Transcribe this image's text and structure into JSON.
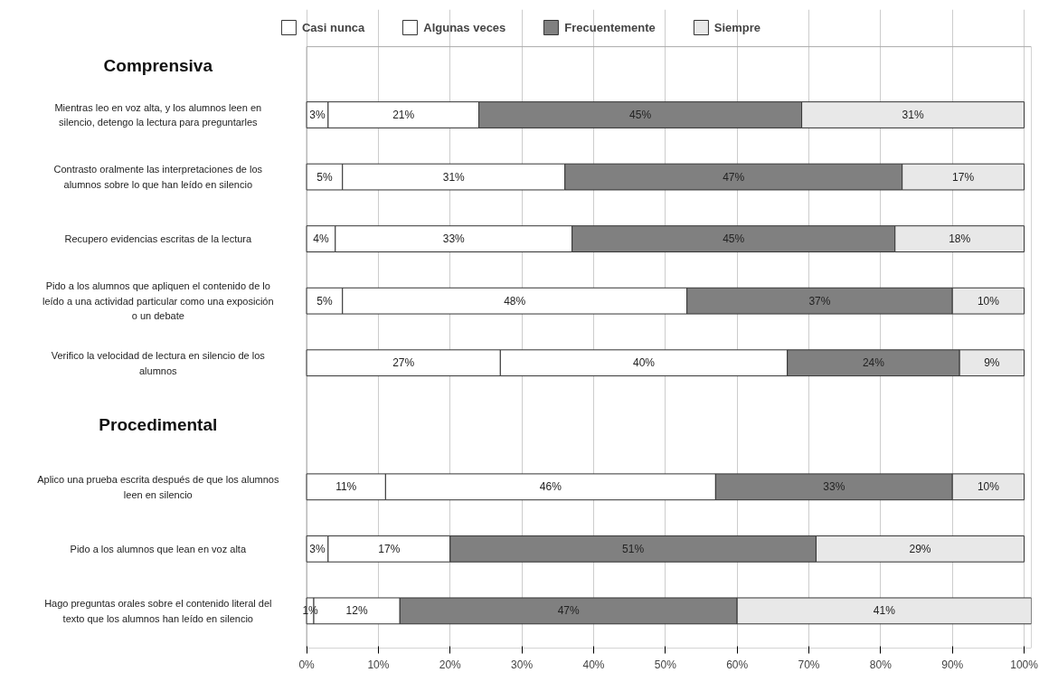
{
  "chart_data": {
    "type": "bar",
    "orientation": "horizontal",
    "stacked": true,
    "categories": [
      "Mientras leo en voz alta, y los alumnos leen en silencio, detengo la lectura para preguntarles",
      "Contrasto oralmente las interpretaciones de los alumnos sobre lo que han leído en silencio",
      "Recupero evidencias escritas de la lectura",
      "Pido a los alumnos que apliquen el contenido de lo leído a una actividad particular como una exposición o un debate",
      "Verifico la velocidad de lectura en silencio de los alumnos",
      null,
      "Aplico una prueba escrita después de que los alumnos leen en silencio",
      "Pido a los alumnos que lean en voz alta",
      "Hago preguntas orales sobre el contenido literal del texto que los alumnos han leído en silencio"
    ],
    "series": [
      {
        "name": "Casi nunca",
        "color": "#ffffff",
        "values": [
          3,
          5,
          4,
          5,
          27,
          null,
          11,
          3,
          1
        ],
        "value_labels": [
          "3%",
          "5%",
          "4%",
          "5%",
          "27%",
          null,
          "11%",
          "3%",
          "1%"
        ]
      },
      {
        "name": "Algunas veces",
        "color": "#ffffff",
        "values": [
          21,
          31,
          33,
          48,
          40,
          null,
          46,
          17,
          12
        ],
        "value_labels": [
          "21%",
          "31%",
          "33%",
          "48%",
          "40%",
          null,
          "46%",
          "17%",
          "12%"
        ]
      },
      {
        "name": "Frecuentemente",
        "color": "#808080",
        "values": [
          45,
          47,
          45,
          37,
          24,
          null,
          33,
          51,
          47
        ],
        "value_labels": [
          "45%",
          "47%",
          "45%",
          "37%",
          "24%",
          null,
          "33%",
          "51%",
          "47%"
        ]
      },
      {
        "name": "Siempre",
        "color": "#e8e8e8",
        "values": [
          31,
          17,
          18,
          10,
          9,
          null,
          10,
          29,
          41
        ],
        "value_labels": [
          "31%",
          "17%",
          "18%",
          "10%",
          "9%",
          null,
          "10%",
          "29%",
          "41%"
        ]
      }
    ],
    "annotations": [
      "Comprensiva",
      "Procedimental"
    ],
    "xlim": [
      0,
      101
    ],
    "xticks": [
      {
        "value": 0,
        "label": "0%"
      },
      {
        "value": 10,
        "label": "10%"
      },
      {
        "value": 20,
        "label": "20%"
      },
      {
        "value": 30,
        "label": "30%"
      },
      {
        "value": 40,
        "label": "40%"
      },
      {
        "value": 50,
        "label": "50%"
      },
      {
        "value": 60,
        "label": "60%"
      },
      {
        "value": 70,
        "label": "70%"
      },
      {
        "value": 80,
        "label": "80%"
      },
      {
        "value": 90,
        "label": "90%"
      },
      {
        "value": 100,
        "label": "100%"
      }
    ],
    "grid": "x",
    "legend": "top"
  }
}
